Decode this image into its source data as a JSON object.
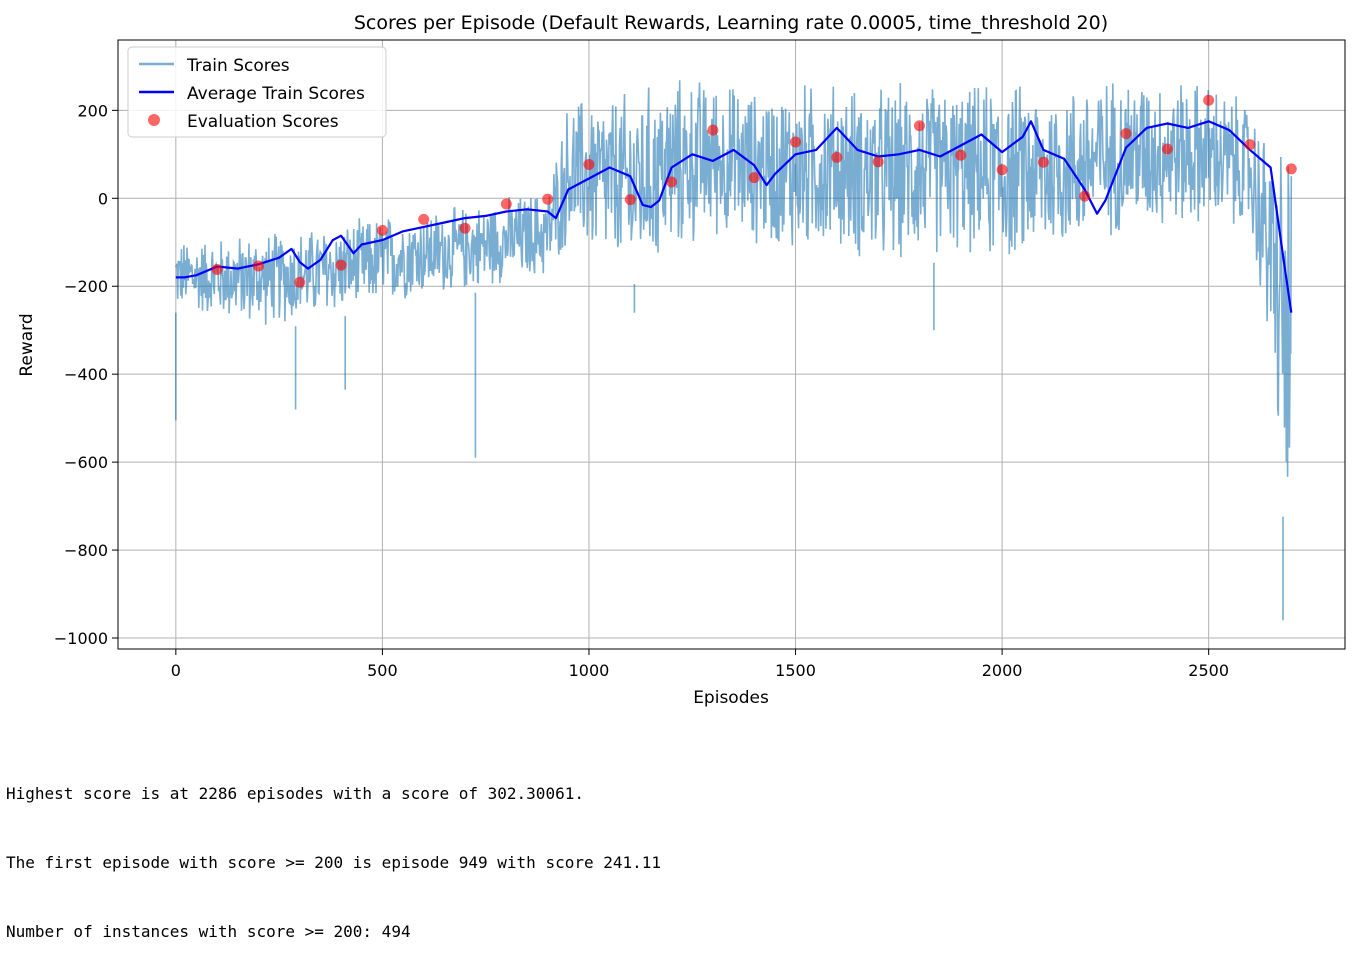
{
  "chart_data": {
    "type": "line",
    "title": "Scores per Episode (Default Rewards, Learning rate 0.0005, time_threshold 20)",
    "xlabel": "Episodes",
    "ylabel": "Reward",
    "xlim": [
      -140,
      2830
    ],
    "ylim": [
      -1025,
      360
    ],
    "x_ticks": [
      0,
      500,
      1000,
      1500,
      2000,
      2500
    ],
    "y_ticks": [
      -1000,
      -800,
      -600,
      -400,
      -200,
      0,
      200
    ],
    "x_tick_labels": [
      "0",
      "500",
      "1000",
      "1500",
      "2000",
      "2500"
    ],
    "y_tick_labels": [
      "−1000",
      "−800",
      "−600",
      "−400",
      "−200",
      "0",
      "200"
    ],
    "grid": true,
    "legend_position": "top-left",
    "series": [
      {
        "name": "Train Scores",
        "kind": "line",
        "color": "#1f77b4",
        "note_values": "noisy per-episode scores, summarized by an envelope band per segment",
        "envelope": [
          {
            "x": 0,
            "low": -260,
            "high": -90
          },
          {
            "x": 100,
            "low": -280,
            "high": -80
          },
          {
            "x": 200,
            "low": -300,
            "high": -70
          },
          {
            "x": 300,
            "low": -290,
            "high": -60
          },
          {
            "x": 400,
            "low": -270,
            "high": -50
          },
          {
            "x": 500,
            "low": -250,
            "high": -30
          },
          {
            "x": 600,
            "low": -230,
            "high": -20
          },
          {
            "x": 700,
            "low": -220,
            "high": -10
          },
          {
            "x": 800,
            "low": -200,
            "high": 10
          },
          {
            "x": 900,
            "low": -190,
            "high": 30
          },
          {
            "x": 950,
            "low": -120,
            "high": 240
          },
          {
            "x": 1000,
            "low": -150,
            "high": 250
          },
          {
            "x": 1100,
            "low": -200,
            "high": 260
          },
          {
            "x": 1200,
            "low": -150,
            "high": 290
          },
          {
            "x": 1300,
            "low": -100,
            "high": 290
          },
          {
            "x": 1400,
            "low": -120,
            "high": 260
          },
          {
            "x": 1500,
            "low": -150,
            "high": 280
          },
          {
            "x": 1600,
            "low": -130,
            "high": 280
          },
          {
            "x": 1700,
            "low": -180,
            "high": 270
          },
          {
            "x": 1800,
            "low": -150,
            "high": 285
          },
          {
            "x": 1900,
            "low": -140,
            "high": 270
          },
          {
            "x": 2000,
            "low": -170,
            "high": 285
          },
          {
            "x": 2100,
            "low": -150,
            "high": 270
          },
          {
            "x": 2200,
            "low": -120,
            "high": 280
          },
          {
            "x": 2300,
            "low": -90,
            "high": 300
          },
          {
            "x": 2400,
            "low": -80,
            "high": 290
          },
          {
            "x": 2500,
            "low": -80,
            "high": 280
          },
          {
            "x": 2600,
            "low": -100,
            "high": 230
          },
          {
            "x": 2650,
            "low": -400,
            "high": 150
          },
          {
            "x": 2700,
            "low": -940,
            "high": 190
          }
        ],
        "spikes": [
          {
            "x": 0,
            "y": -505
          },
          {
            "x": 290,
            "y": -480
          },
          {
            "x": 410,
            "y": -435
          },
          {
            "x": 725,
            "y": -590
          },
          {
            "x": 1110,
            "y": -260
          },
          {
            "x": 1835,
            "y": -300
          },
          {
            "x": 2680,
            "y": -960
          }
        ]
      },
      {
        "name": "Average Train Scores",
        "kind": "line",
        "color": "#0000ff",
        "x": [
          0,
          20,
          50,
          100,
          150,
          200,
          250,
          280,
          300,
          320,
          350,
          380,
          400,
          430,
          450,
          500,
          550,
          600,
          650,
          700,
          750,
          800,
          850,
          900,
          920,
          950,
          1000,
          1050,
          1100,
          1130,
          1150,
          1170,
          1200,
          1250,
          1300,
          1350,
          1400,
          1430,
          1450,
          1500,
          1550,
          1600,
          1650,
          1700,
          1750,
          1800,
          1850,
          1900,
          1950,
          2000,
          2050,
          2070,
          2100,
          2150,
          2200,
          2230,
          2250,
          2300,
          2350,
          2400,
          2450,
          2500,
          2550,
          2600,
          2650,
          2680,
          2700
        ],
        "y": [
          -180,
          -180,
          -175,
          -155,
          -160,
          -150,
          -135,
          -115,
          -145,
          -160,
          -140,
          -95,
          -85,
          -125,
          -105,
          -95,
          -75,
          -65,
          -55,
          -45,
          -40,
          -30,
          -25,
          -30,
          -45,
          20,
          45,
          70,
          50,
          -15,
          -20,
          -5,
          70,
          100,
          85,
          110,
          75,
          30,
          55,
          100,
          110,
          160,
          110,
          95,
          100,
          110,
          95,
          120,
          145,
          105,
          140,
          175,
          110,
          90,
          20,
          -35,
          -5,
          115,
          160,
          170,
          160,
          175,
          155,
          110,
          70,
          -130,
          -260
        ]
      },
      {
        "name": "Evaluation Scores",
        "kind": "scatter",
        "color": "#ff0000",
        "x": [
          100,
          200,
          300,
          400,
          500,
          600,
          700,
          800,
          900,
          1000,
          1100,
          1200,
          1300,
          1400,
          1500,
          1600,
          1700,
          1800,
          1900,
          2000,
          2100,
          2200,
          2300,
          2400,
          2500,
          2600,
          2700
        ],
        "y": [
          -162,
          -154,
          -191,
          -152,
          -73,
          -48,
          -68,
          -13,
          -2,
          77,
          -3,
          37,
          155,
          47,
          128,
          93,
          83,
          165,
          98,
          65,
          82,
          5,
          147,
          112,
          223,
          122,
          67
        ]
      }
    ]
  },
  "output_lines": [
    "Highest score is at 2286 episodes with a score of 302.30061.",
    "The first episode with score >= 200 is episode 949 with score 241.11",
    "Number of instances with score >= 200: 494"
  ]
}
